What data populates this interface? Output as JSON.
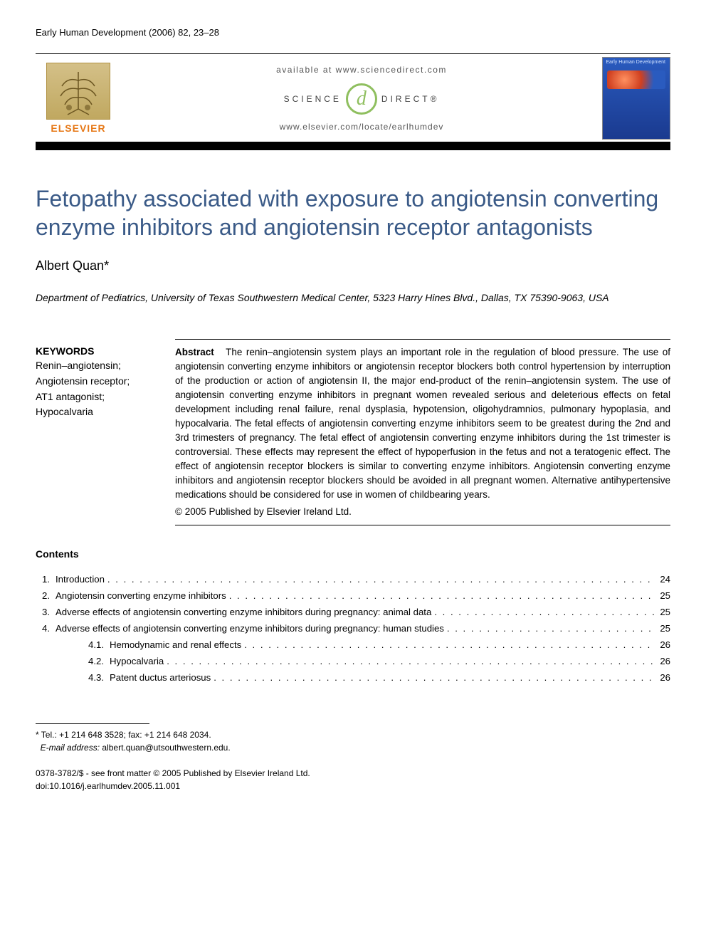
{
  "journal_header": "Early Human Development (2006) 82, 23–28",
  "publisher_logo_text": "ELSEVIER",
  "available_text": "available at www.sciencedirect.com",
  "sd_left": "SCIENCE",
  "sd_glyph": "d",
  "sd_right": "DIRECT®",
  "journal_url": "www.elsevier.com/locate/earlhumdev",
  "cover_title": "Early Human\nDevelopment",
  "title": "Fetopathy associated with exposure to angiotensin converting enzyme inhibitors and angiotensin receptor antagonists",
  "author": "Albert Quan",
  "author_marker": "*",
  "affiliation": "Department of Pediatrics, University of Texas Southwestern Medical Center, 5323 Harry Hines Blvd., Dallas, TX 75390-9063, USA",
  "keywords_heading": "KEYWORDS",
  "keywords": "Renin–angiotensin;\nAngiotensin receptor;\nAT1 antagonist;\nHypocalvaria",
  "abstract_label": "Abstract",
  "abstract_text": "The renin–angiotensin system plays an important role in the regulation of blood pressure. The use of angiotensin converting enzyme inhibitors or angiotensin receptor blockers both control hypertension by interruption of the production or action of angiotensin II, the major end-product of the renin–angiotensin system. The use of angiotensin converting enzyme inhibitors in pregnant women revealed serious and deleterious effects on fetal development including renal failure, renal dysplasia, hypotension, oligohydramnios, pulmonary hypoplasia, and hypocalvaria. The fetal effects of angiotensin converting enzyme inhibitors seem to be greatest during the 2nd and 3rd trimesters of pregnancy. The fetal effect of angiotensin converting enzyme inhibitors during the 1st trimester is controversial. These effects may represent the effect of hypoperfusion in the fetus and not a teratogenic effect. The effect of angiotensin receptor blockers is similar to converting enzyme inhibitors. Angiotensin converting enzyme inhibitors and angiotensin receptor blockers should be avoided in all pregnant women. Alternative antihypertensive medications should be considered for use in women of childbearing years.",
  "copyright": "© 2005 Published by Elsevier Ireland Ltd.",
  "contents_heading": "Contents",
  "toc": [
    {
      "num": "1.",
      "label": "Introduction",
      "page": "24",
      "sub": false
    },
    {
      "num": "2.",
      "label": "Angiotensin converting enzyme inhibitors",
      "page": "25",
      "sub": false
    },
    {
      "num": "3.",
      "label": "Adverse effects of angiotensin converting enzyme inhibitors during pregnancy: animal data",
      "page": "25",
      "sub": false
    },
    {
      "num": "4.",
      "label": "Adverse effects of angiotensin converting enzyme inhibitors during pregnancy: human studies",
      "page": "25",
      "sub": false
    },
    {
      "num": "4.1.",
      "label": "Hemodynamic and renal effects",
      "page": "26",
      "sub": true
    },
    {
      "num": "4.2.",
      "label": "Hypocalvaria",
      "page": "26",
      "sub": true
    },
    {
      "num": "4.3.",
      "label": "Patent ductus arteriosus",
      "page": "26",
      "sub": true
    }
  ],
  "footnote_marker": "*",
  "footnote_contact": "Tel.: +1 214 648 3528; fax: +1 214 648 2034.",
  "footnote_email_label": "E-mail address:",
  "footnote_email": "albert.quan@utsouthwestern.edu.",
  "issn_line": "0378-3782/$ - see front matter © 2005 Published by Elsevier Ireland Ltd.",
  "doi_line": "doi:10.1016/j.earlhumdev.2005.11.001",
  "colors": {
    "title_color": "#3a5a87",
    "elsevier_orange": "#e67817",
    "sd_green": "#8fbf5f",
    "cover_blue": "#2a5bbf"
  }
}
